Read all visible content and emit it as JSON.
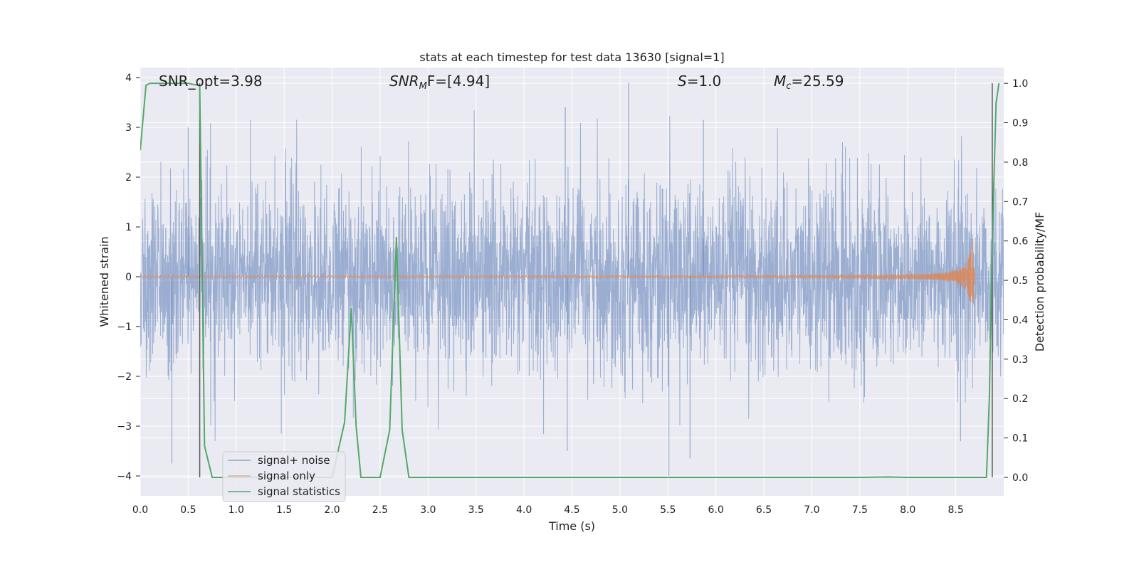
{
  "chart_data": {
    "type": "line",
    "title": "stats at each timestep for test data 13630 [signal=1]",
    "xlabel": "Time (s)",
    "ylabel": "Whitened strain",
    "ylabel_right": "Detection probability/MF",
    "xlim": [
      0.0,
      9.0
    ],
    "ylim": [
      -4.4,
      4.2
    ],
    "ylim_right": [
      -0.047,
      1.04
    ],
    "x_ticks": [
      "0.0",
      "0.5",
      "1.0",
      "1.5",
      "2.0",
      "2.5",
      "3.0",
      "3.5",
      "4.0",
      "4.5",
      "5.0",
      "5.5",
      "6.0",
      "6.5",
      "7.0",
      "7.5",
      "8.0",
      "8.5"
    ],
    "y_ticks": [
      "−4",
      "−3",
      "−2",
      "−1",
      "0",
      "1",
      "2",
      "3",
      "4"
    ],
    "y_ticks_right": [
      "0.0",
      "0.1",
      "0.2",
      "0.3",
      "0.4",
      "0.5",
      "0.6",
      "0.7",
      "0.8",
      "0.9",
      "1.0"
    ],
    "grid": true,
    "legend_position": "lower-left",
    "annotations": {
      "snr_opt": "SNR_opt=3.98",
      "snr_mf_prefix": "SNR",
      "snr_mf_sub": "M",
      "snr_mf_suffix": "F=[4.94]",
      "s_prefix": "S",
      "s_suffix": "=1.0",
      "mc_prefix": "M",
      "mc_sub": "c",
      "mc_suffix": "=25.59"
    },
    "vlines": [
      0.62,
      8.88
    ],
    "series": [
      {
        "name": "signal+ noise",
        "color": "#4c72b0",
        "description_values": "whitened strain noise, approx. unit variance, range about -4 to 3.9",
        "peaks": [
          [
            0.5,
            3.0
          ],
          [
            0.33,
            -3.75
          ],
          [
            4.43,
            3.4
          ],
          [
            4.45,
            -3.5
          ],
          [
            5.09,
            3.9
          ],
          [
            5.51,
            -4.0
          ],
          [
            5.73,
            -3.65
          ],
          [
            5.87,
            3.15
          ],
          [
            8.55,
            -3.3
          ]
        ]
      },
      {
        "name": "signal only",
        "color": "#dd8452",
        "chirp": {
          "start_amp": 0.02,
          "peak_amp": 0.85,
          "peak_time": 8.68,
          "end_time": 8.7
        }
      },
      {
        "name": "signal statistics",
        "color": "#55a868",
        "axis": "right",
        "x": [
          0.0,
          0.06,
          0.1,
          0.15,
          0.2,
          0.3,
          0.4,
          0.5,
          0.6,
          0.62,
          0.67,
          0.75,
          0.8,
          0.9,
          1.0,
          1.5,
          2.0,
          2.13,
          2.2,
          2.25,
          2.3,
          2.35,
          2.5,
          2.6,
          2.67,
          2.73,
          2.8,
          3.0,
          4.0,
          5.0,
          6.0,
          7.0,
          7.5,
          7.8,
          8.0,
          8.5,
          8.82,
          8.85,
          8.88,
          8.92,
          8.95
        ],
        "y": [
          0.83,
          0.995,
          1.0,
          1.0,
          1.0,
          1.0,
          1.0,
          1.0,
          0.995,
          0.995,
          0.08,
          0.0,
          0.0,
          0.0,
          0.0,
          0.0,
          0.0,
          0.14,
          0.43,
          0.13,
          0.0,
          0.0,
          0.0,
          0.12,
          0.61,
          0.12,
          0.0,
          0.0,
          0.0,
          0.0,
          0.0,
          0.0,
          0.0,
          0.001,
          0.0,
          0.0,
          0.0,
          0.2,
          0.6,
          0.95,
          1.0
        ]
      }
    ]
  },
  "colors": {
    "plot_bg": "#eaeaf2",
    "grid": "#ffffff",
    "vline": "#555555"
  }
}
